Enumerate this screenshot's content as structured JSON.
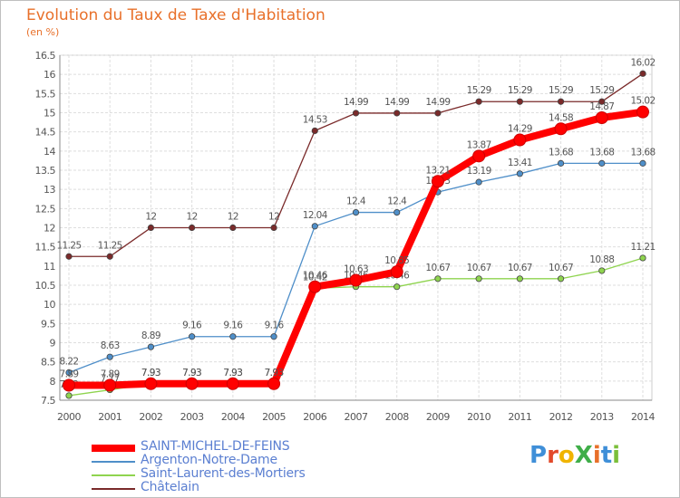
{
  "title": "Evolution du Taux de Taxe d'Habitation",
  "subtitle": "(en %)",
  "logo": {
    "text": "ProXiti",
    "letters": [
      "P",
      "r",
      "o",
      "X",
      "i",
      "t",
      "i"
    ],
    "colors": [
      "#3f8fd8",
      "#e24a2b",
      "#f0b400",
      "#3fae49",
      "#e8702a",
      "#3f8fd8",
      "#7bbf3a"
    ]
  },
  "chart_data": {
    "type": "line",
    "x": [
      2000,
      2001,
      2002,
      2003,
      2004,
      2005,
      2006,
      2007,
      2008,
      2009,
      2010,
      2011,
      2012,
      2013,
      2014
    ],
    "ylim": [
      7.5,
      16.5
    ],
    "y_ticks": [
      7.5,
      8,
      8.5,
      9,
      9.5,
      10,
      10.5,
      11,
      11.5,
      12,
      12.5,
      13,
      13.5,
      14,
      14.5,
      15,
      15.5,
      16,
      16.5
    ],
    "grid": true,
    "legend_position": "bottom-left",
    "series": [
      {
        "name": "SAINT-MICHEL-DE-FEINS",
        "color": "#ff0000",
        "emphasis": true,
        "values": [
          7.89,
          7.89,
          7.93,
          7.93,
          7.93,
          7.93,
          10.46,
          10.63,
          10.85,
          13.21,
          13.87,
          14.29,
          14.58,
          14.87,
          15.02
        ],
        "labels": [
          "7.89",
          "7.89",
          "7.93",
          "7.93",
          "7.93",
          "7.93",
          "10.46",
          "10.63",
          "10.85",
          "13.21",
          "13.87",
          "14.29",
          "14.58",
          "14.87",
          "15.02"
        ]
      },
      {
        "name": "Argenton-Notre-Dame",
        "color": "#4f8fc9",
        "emphasis": false,
        "values": [
          8.22,
          8.63,
          8.89,
          9.16,
          9.16,
          9.16,
          12.04,
          12.4,
          12.4,
          12.93,
          13.19,
          13.41,
          13.68,
          13.68,
          13.68
        ],
        "labels": [
          "8.22",
          "8.63",
          "8.89",
          "9.16",
          "9.16",
          "9.16",
          "12.04",
          "12.4",
          "12.4",
          "12.93",
          "13.19",
          "13.41",
          "13.68",
          "13.68",
          "13.68"
        ]
      },
      {
        "name": "Saint-Laurent-des-Mortiers",
        "color": "#8fd44f",
        "emphasis": false,
        "values": [
          7.62,
          7.77,
          7.93,
          7.93,
          7.93,
          7.93,
          10.42,
          10.46,
          10.46,
          10.67,
          10.67,
          10.67,
          10.67,
          10.88,
          11.21
        ],
        "labels": [
          "7.62",
          "7.77",
          "7.93",
          "7.93",
          "7.93",
          "7.93",
          "10.42",
          "10.46",
          "10.46",
          "10.67",
          "10.67",
          "10.67",
          "10.67",
          "10.88",
          "11.21"
        ]
      },
      {
        "name": "Châtelain",
        "color": "#7a2a2a",
        "emphasis": false,
        "values": [
          11.25,
          11.25,
          12,
          12,
          12,
          12,
          14.53,
          14.99,
          14.99,
          14.99,
          15.29,
          15.29,
          15.29,
          15.29,
          16.02
        ],
        "labels": [
          "11.25",
          "11.25",
          "12",
          "12",
          "12",
          "12",
          "14.53",
          "14.99",
          "14.99",
          "14.99",
          "15.29",
          "15.29",
          "15.29",
          "15.29",
          "16.02"
        ]
      }
    ]
  }
}
